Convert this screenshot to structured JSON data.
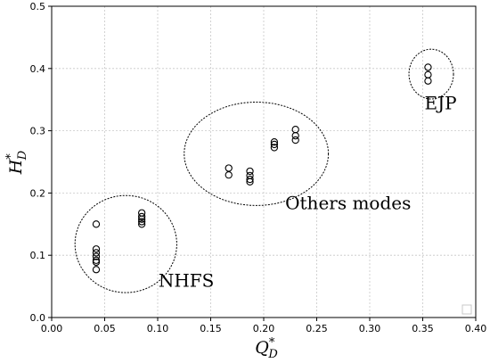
{
  "chart_data": {
    "type": "scatter",
    "title": "",
    "xlabel": "Q",
    "xlabel_sup": "*",
    "xlabel_sub": "D",
    "ylabel": "H",
    "ylabel_sup": "*",
    "ylabel_sub": "D",
    "xlim": [
      0.0,
      0.4
    ],
    "ylim": [
      0.0,
      0.5
    ],
    "xticks": [
      "0.00",
      "0.05",
      "0.10",
      "0.15",
      "0.20",
      "0.25",
      "0.30",
      "0.35",
      "0.40"
    ],
    "yticks": [
      "0.0",
      "0.1",
      "0.2",
      "0.3",
      "0.4",
      "0.5"
    ],
    "grid": true,
    "legend": "lower-right, empty",
    "marker": "open circle",
    "series": [
      {
        "x": [
          0.042,
          0.042,
          0.042,
          0.042,
          0.042,
          0.042,
          0.042,
          0.085,
          0.085,
          0.085,
          0.085,
          0.085,
          0.167,
          0.167,
          0.187,
          0.187,
          0.187,
          0.187,
          0.21,
          0.21,
          0.21,
          0.23,
          0.23,
          0.23,
          0.355,
          0.355,
          0.355
        ],
        "y": [
          0.15,
          0.11,
          0.104,
          0.098,
          0.092,
          0.089,
          0.077,
          0.168,
          0.162,
          0.158,
          0.154,
          0.15,
          0.24,
          0.229,
          0.235,
          0.228,
          0.222,
          0.218,
          0.282,
          0.278,
          0.273,
          0.302,
          0.292,
          0.285,
          0.402,
          0.39,
          0.38
        ]
      }
    ],
    "clusters": [
      {
        "label": "NHFS",
        "cx": 0.07,
        "cy": 0.118,
        "rx": 0.048,
        "ry": 0.078
      },
      {
        "label": "Others modes",
        "cx": 0.193,
        "cy": 0.263,
        "rx": 0.068,
        "ry": 0.083
      },
      {
        "label": "EJP",
        "cx": 0.358,
        "cy": 0.391,
        "rx": 0.021,
        "ry": 0.04
      }
    ]
  }
}
